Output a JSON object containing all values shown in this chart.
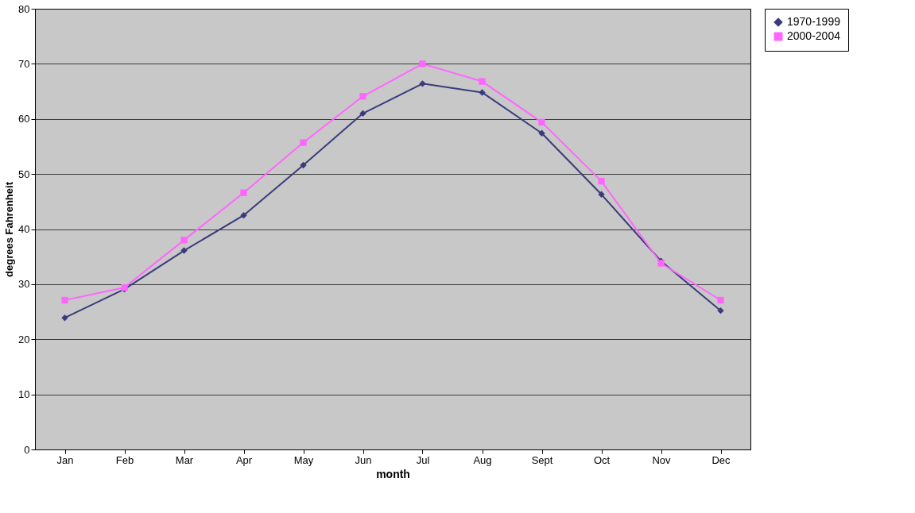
{
  "chart_data": {
    "type": "line",
    "xlabel": "month",
    "ylabel": "degrees Fahrenheit",
    "categories": [
      "Jan",
      "Feb",
      "Mar",
      "Apr",
      "May",
      "Jun",
      "Jul",
      "Aug",
      "Sept",
      "Oct",
      "Nov",
      "Dec"
    ],
    "series": [
      {
        "name": "1970-1999",
        "color": "#3b3b7c",
        "marker": "diamond",
        "values": [
          23.9,
          29.1,
          36.1,
          42.5,
          51.6,
          61,
          66.4,
          64.8,
          57.4,
          46.3,
          34.2,
          25.2
        ]
      },
      {
        "name": "2000-2004",
        "color": "#ff66ff",
        "marker": "square",
        "values": [
          27.1,
          29.4,
          38,
          46.6,
          55.7,
          64.1,
          70,
          66.8,
          59.4,
          48.7,
          33.8,
          27.1
        ]
      }
    ],
    "ylim": [
      0,
      80
    ],
    "yticks": [
      0,
      10,
      20,
      30,
      40,
      50,
      60,
      70,
      80
    ],
    "grid": "y",
    "legend": "right",
    "line_style": "solid"
  }
}
